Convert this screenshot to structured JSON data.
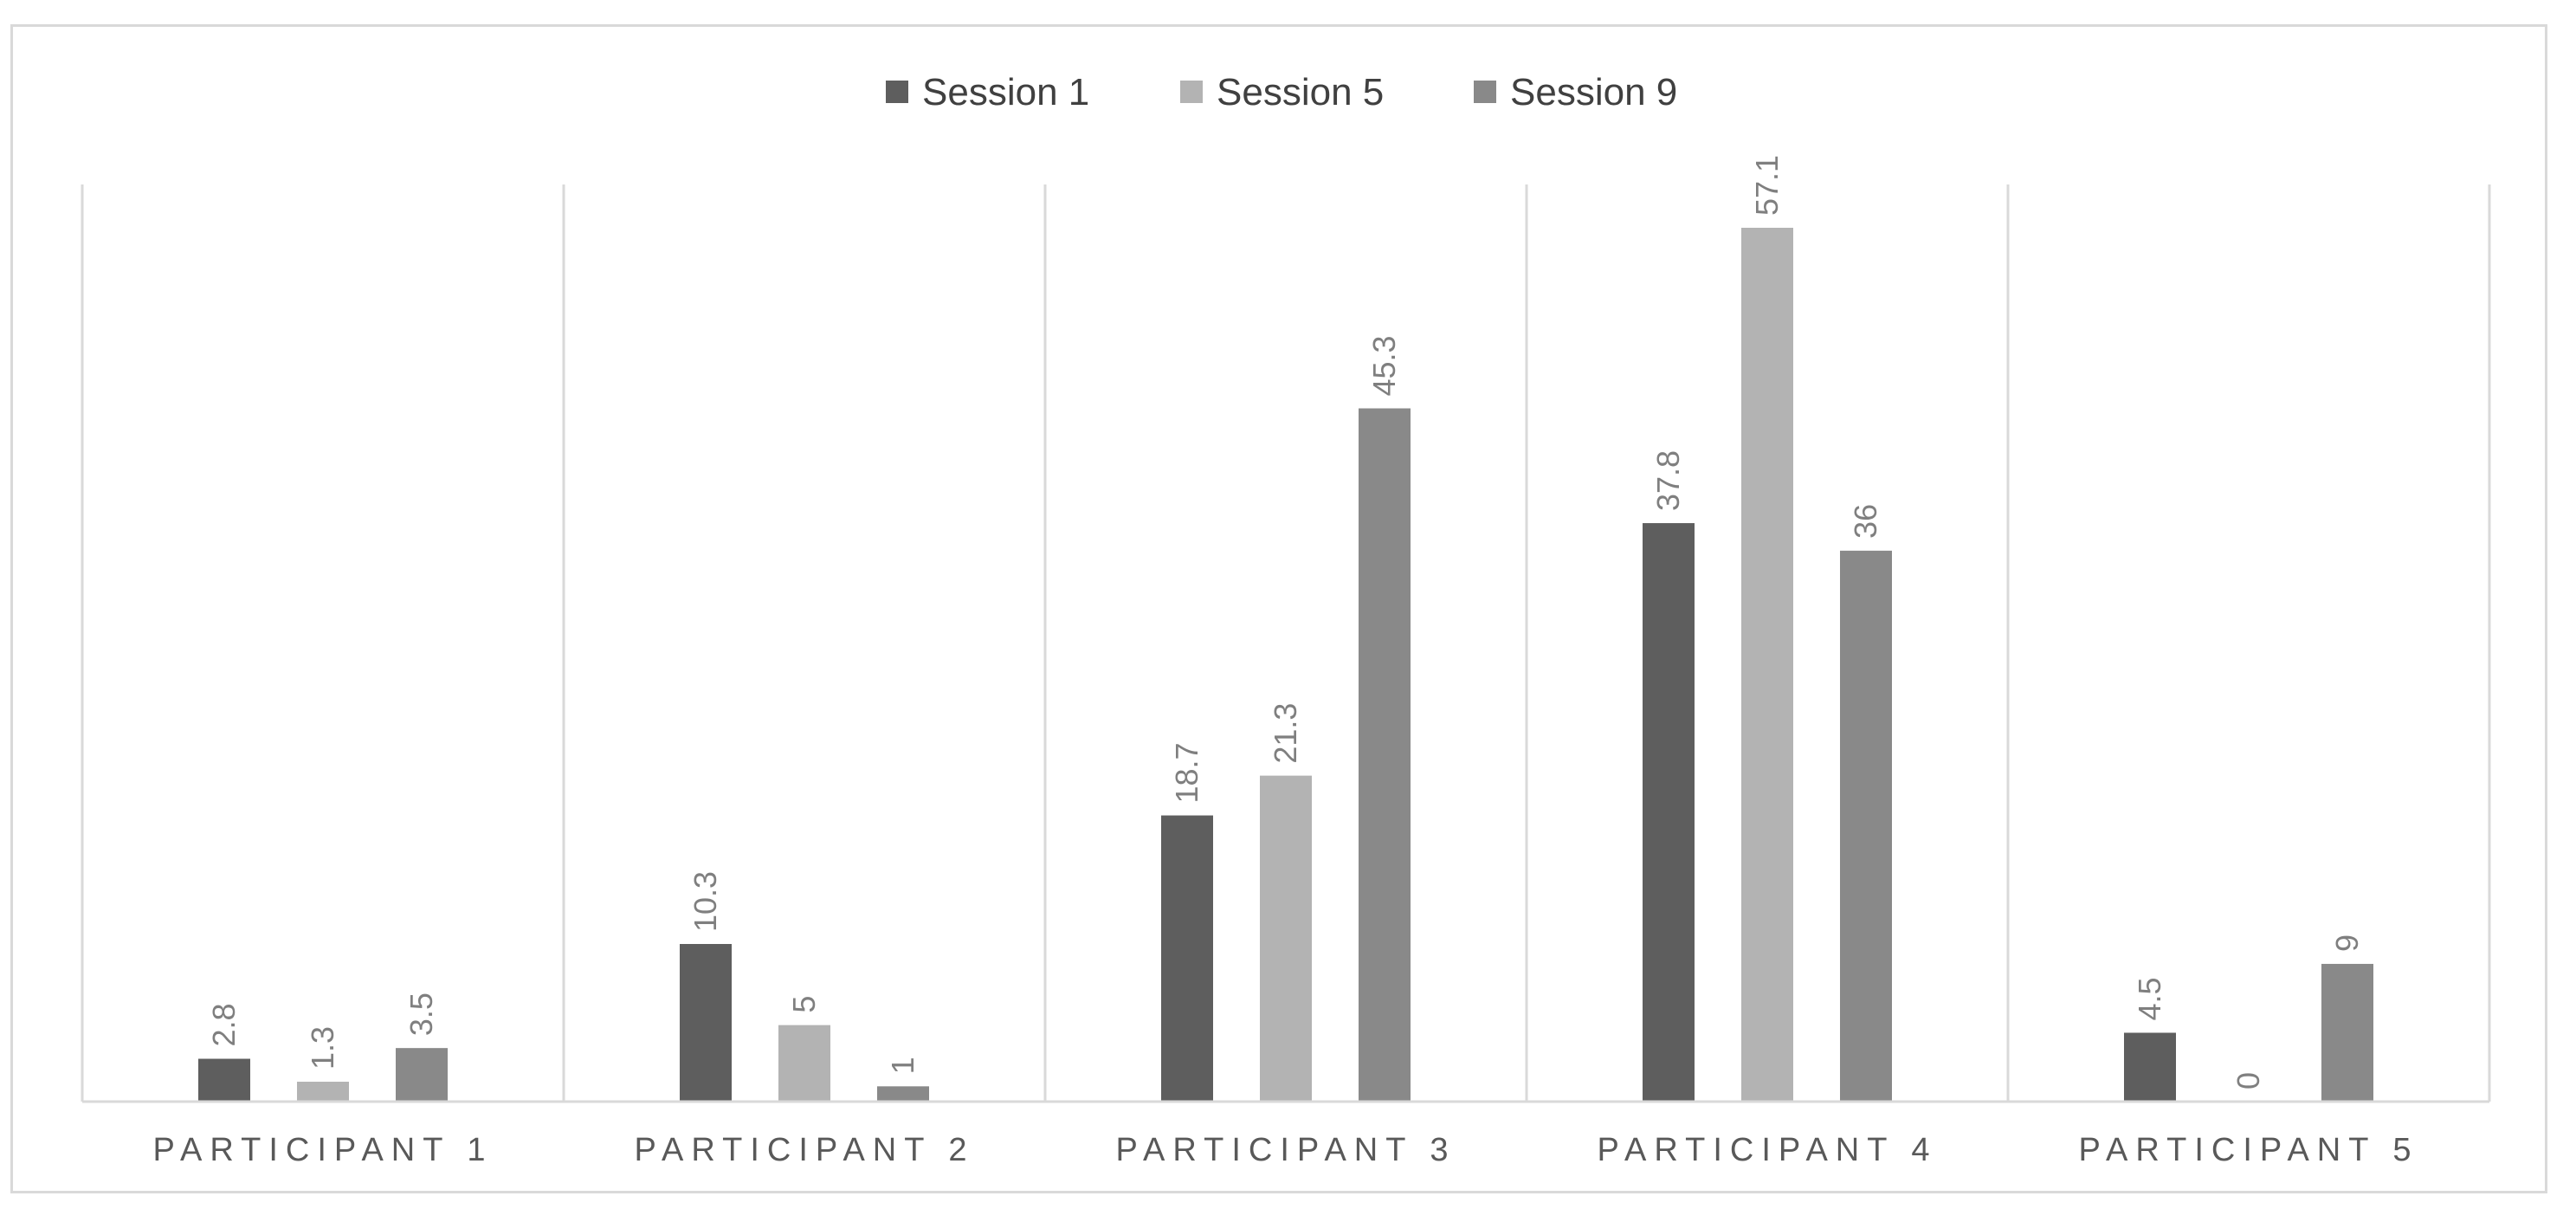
{
  "chart_data": {
    "type": "bar",
    "title": "",
    "xlabel": "",
    "ylabel": "",
    "categories": [
      "PARTICIPANT 1",
      "PARTICIPANT 2",
      "PARTICIPANT 3",
      "PARTICIPANT 4",
      "PARTICIPANT 5"
    ],
    "series": [
      {
        "name": "Session 1",
        "color": "#5e5e5e",
        "values": [
          2.8,
          10.3,
          18.7,
          37.8,
          4.5
        ],
        "labels": [
          "2.8",
          "10.3",
          "18.7",
          "37.8",
          "4.5"
        ]
      },
      {
        "name": "Session 5",
        "color": "#b3b3b3",
        "values": [
          1.3,
          5,
          21.3,
          57.1,
          0
        ],
        "labels": [
          "1.3",
          "5",
          "21.3",
          "57.1",
          "0"
        ]
      },
      {
        "name": "Session 9",
        "color": "#898989",
        "values": [
          3.5,
          1,
          45.3,
          36,
          9
        ],
        "labels": [
          "3.5",
          "1",
          "45.3",
          "36",
          "9"
        ]
      }
    ],
    "ylim": [
      0,
      60
    ],
    "legend_position": "top",
    "grid": false,
    "category_separators": true,
    "data_label_orientation": "vertical"
  }
}
